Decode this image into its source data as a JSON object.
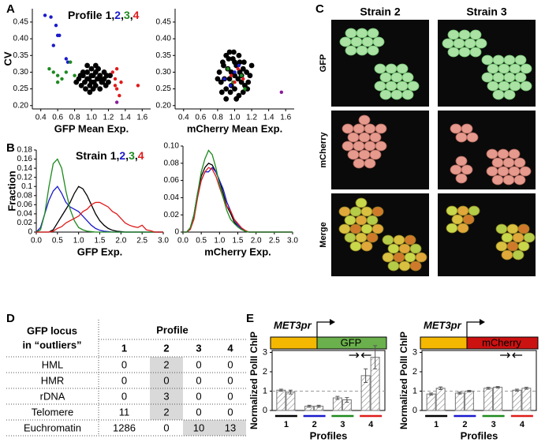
{
  "panel_labels": [
    "A",
    "B",
    "C",
    "D",
    "E"
  ],
  "chart_data": [
    {
      "type": "scatter",
      "title": "Profile",
      "separator": ",",
      "xlabel": "GFP Mean Exp.",
      "ylabel": "CV",
      "xlim": [
        0.3,
        1.7
      ],
      "xticks": [
        0.4,
        0.6,
        0.8,
        {
          "value": 1.0,
          "label": "1.0"
        },
        1.2,
        1.4,
        1.6
      ],
      "ylim": [
        0.19,
        0.49
      ],
      "yticks": [
        {
          "value": 0.2,
          "label": "0.20"
        },
        0.25,
        {
          "value": 0.3,
          "label": "0.30"
        },
        0.35,
        {
          "value": 0.4,
          "label": "0.40"
        },
        0.45
      ],
      "series": [
        {
          "name": "1",
          "color": "#000000",
          "x": [
            0.85,
            0.9,
            0.95,
            1.0,
            1.05,
            1.1,
            1.15,
            1.2,
            0.88,
            0.92,
            0.97,
            1.02,
            1.07,
            1.12,
            1.17,
            0.9,
            0.95,
            1.0,
            1.05,
            1.1,
            1.15,
            0.87,
            0.93,
            0.98,
            1.03,
            1.08,
            1.13,
            1.18,
            0.95,
            1.0,
            1.05,
            1.1,
            0.98,
            1.02,
            0.82,
            1.22
          ],
          "y": [
            0.28,
            0.29,
            0.3,
            0.31,
            0.3,
            0.29,
            0.28,
            0.27,
            0.26,
            0.27,
            0.28,
            0.29,
            0.28,
            0.27,
            0.26,
            0.3,
            0.32,
            0.27,
            0.26,
            0.25,
            0.3,
            0.29,
            0.25,
            0.24,
            0.27,
            0.31,
            0.27,
            0.29,
            0.28,
            0.29,
            0.32,
            0.28,
            0.26,
            0.25,
            0.27,
            0.29
          ]
        },
        {
          "name": "2",
          "color": "#1a1acc",
          "x": [
            0.45,
            0.52,
            0.58,
            0.6,
            0.62,
            0.55,
            0.7,
            0.72
          ],
          "y": [
            0.47,
            0.465,
            0.44,
            0.41,
            0.41,
            0.38,
            0.34,
            0.33
          ]
        },
        {
          "name": "3",
          "color": "#1e8a1e",
          "x": [
            0.5,
            0.55,
            0.6,
            0.65,
            0.7,
            0.75,
            0.6,
            0.8
          ],
          "y": [
            0.31,
            0.3,
            0.29,
            0.28,
            0.3,
            0.33,
            0.27,
            0.29
          ]
        },
        {
          "name": "4",
          "color": "#e01b1b",
          "x": [
            1.25,
            1.28,
            1.3,
            1.33,
            1.35,
            1.3,
            1.55,
            1.28
          ],
          "y": [
            0.3,
            0.28,
            0.25,
            0.23,
            0.27,
            0.31,
            0.26,
            0.26
          ]
        },
        {
          "color": "#8b1a9b",
          "x": [
            1.3
          ],
          "y": [
            0.21
          ]
        }
      ]
    },
    {
      "type": "scatter",
      "xlabel": "mCherry Mean Exp.",
      "xlim": [
        0.3,
        1.7
      ],
      "xticks": [
        0.4,
        0.6,
        0.8,
        {
          "value": 1.0,
          "label": "1.0"
        },
        1.2,
        1.4,
        1.6
      ],
      "ylim": [
        0.19,
        0.49
      ],
      "yticks": [
        {
          "value": 0.2,
          "label": "0.20"
        },
        0.25,
        {
          "value": 0.3,
          "label": "0.30"
        },
        0.35,
        {
          "value": 0.4,
          "label": "0.40"
        },
        0.45
      ],
      "series": [
        {
          "color": "#000000",
          "x": [
            0.82,
            0.86,
            0.9,
            0.94,
            0.98,
            1.02,
            1.06,
            1.1,
            1.14,
            1.18,
            0.84,
            0.88,
            0.92,
            0.96,
            1.0,
            1.04,
            1.08,
            1.12,
            1.16,
            0.85,
            0.9,
            0.95,
            1.0,
            1.05,
            1.1,
            1.15,
            0.87,
            0.93,
            0.99,
            1.05,
            1.11,
            0.9,
            0.96,
            1.02,
            1.08,
            0.94,
            1.0,
            1.06,
            0.8,
            1.2
          ],
          "y": [
            0.3,
            0.33,
            0.35,
            0.36,
            0.34,
            0.32,
            0.33,
            0.31,
            0.3,
            0.29,
            0.27,
            0.28,
            0.31,
            0.3,
            0.29,
            0.28,
            0.27,
            0.26,
            0.27,
            0.24,
            0.25,
            0.24,
            0.25,
            0.23,
            0.24,
            0.25,
            0.32,
            0.34,
            0.36,
            0.35,
            0.33,
            0.22,
            0.26,
            0.22,
            0.29,
            0.28,
            0.33,
            0.3,
            0.28,
            0.32
          ]
        },
        {
          "color": "#1a1acc",
          "x": [
            0.88,
            0.95,
            1.0,
            1.05
          ],
          "y": [
            0.28,
            0.26,
            0.3,
            0.32
          ]
        },
        {
          "color": "#1e8a1e",
          "x": [
            0.92,
            0.98,
            1.08,
            1.12
          ],
          "y": [
            0.31,
            0.27,
            0.29,
            0.25
          ]
        },
        {
          "color": "#e01b1b",
          "x": [
            0.96,
            1.0,
            1.04,
            1.1
          ],
          "y": [
            0.29,
            0.27,
            0.31,
            0.28
          ]
        },
        {
          "color": "#8b1a9b",
          "x": [
            1.55
          ],
          "y": [
            0.24
          ]
        }
      ]
    },
    {
      "type": "line",
      "title": "Strain",
      "separator": ",",
      "xlabel": "GFP Exp.",
      "ylabel": "Fraction",
      "xlim": [
        0,
        3
      ],
      "xticks": [
        {
          "value": 0,
          "label": "0.0"
        },
        0.5,
        {
          "value": 1,
          "label": "1.0"
        },
        1.5,
        {
          "value": 2,
          "label": "2.0"
        },
        2.5,
        {
          "value": 3,
          "label": "3.0"
        }
      ],
      "ylim": [
        0,
        0.18
      ],
      "yticks": [
        0,
        0.02,
        0.04,
        0.06,
        0.08,
        0.1,
        0.12,
        0.14,
        0.16,
        0.18
      ],
      "x": [
        0,
        0.1,
        0.2,
        0.3,
        0.4,
        0.5,
        0.6,
        0.7,
        0.8,
        0.9,
        1,
        1.1,
        1.2,
        1.3,
        1.4,
        1.5,
        1.6,
        1.7,
        1.8,
        1.9,
        2,
        2.1,
        2.2,
        2.3,
        2.4,
        2.5,
        2.6,
        2.7,
        2.8,
        2.9,
        3
      ],
      "series": [
        {
          "name": "1",
          "color": "#000000",
          "values": [
            0,
            0,
            0,
            0,
            0.005,
            0.02,
            0.035,
            0.05,
            0.065,
            0.085,
            0.1,
            0.095,
            0.08,
            0.06,
            0.04,
            0.025,
            0.015,
            0.008,
            0.004,
            0.002,
            0.001,
            0,
            0,
            0,
            0,
            0,
            0,
            0,
            0,
            0,
            0
          ]
        },
        {
          "name": "2",
          "color": "#1a1acc",
          "values": [
            0,
            0.01,
            0.04,
            0.07,
            0.09,
            0.1,
            0.085,
            0.065,
            0.055,
            0.05,
            0.045,
            0.035,
            0.025,
            0.015,
            0.008,
            0.004,
            0.002,
            0.001,
            0,
            0,
            0,
            0,
            0,
            0,
            0,
            0,
            0,
            0,
            0,
            0,
            0
          ]
        },
        {
          "name": "3",
          "color": "#1e8a1e",
          "values": [
            0,
            0.005,
            0.04,
            0.1,
            0.15,
            0.16,
            0.14,
            0.09,
            0.05,
            0.025,
            0.01,
            0.005,
            0.002,
            0.001,
            0,
            0,
            0,
            0,
            0,
            0,
            0,
            0,
            0,
            0,
            0,
            0,
            0,
            0,
            0,
            0,
            0
          ]
        },
        {
          "name": "4",
          "color": "#e01b1b",
          "values": [
            0,
            0,
            0,
            0,
            0.002,
            0.008,
            0.012,
            0.02,
            0.025,
            0.03,
            0.035,
            0.045,
            0.05,
            0.06,
            0.065,
            0.065,
            0.06,
            0.055,
            0.045,
            0.04,
            0.03,
            0.02,
            0.015,
            0.012,
            0.01,
            0.015,
            0.005,
            0.003,
            0,
            0,
            0
          ]
        }
      ]
    },
    {
      "type": "line",
      "xlabel": "mCherry Exp.",
      "xlim": [
        0,
        3
      ],
      "xticks": [
        {
          "value": 0,
          "label": "0.0"
        },
        0.5,
        {
          "value": 1,
          "label": "1.0"
        },
        1.5,
        {
          "value": 2,
          "label": "2.0"
        },
        2.5,
        {
          "value": 3,
          "label": "3.0"
        }
      ],
      "ylim": [
        0,
        0.1
      ],
      "yticks": [
        0,
        0.02,
        0.04,
        0.06,
        0.08,
        {
          "value": 0.1,
          "label": "0.10"
        }
      ],
      "x": [
        0,
        0.1,
        0.2,
        0.3,
        0.4,
        0.5,
        0.6,
        0.7,
        0.8,
        0.9,
        1,
        1.1,
        1.2,
        1.3,
        1.4,
        1.5,
        1.6,
        1.7,
        1.8,
        1.9,
        2,
        2.1,
        2.2,
        2.3,
        2.4,
        2.5,
        2.6,
        2.7,
        2.8,
        2.9,
        3
      ],
      "series": [
        {
          "color": "#000000",
          "values": [
            0,
            0,
            0.005,
            0.02,
            0.045,
            0.065,
            0.075,
            0.08,
            0.078,
            0.07,
            0.06,
            0.045,
            0.03,
            0.022,
            0.012,
            0.006,
            0.003,
            0.001,
            0,
            0,
            0,
            0,
            0,
            0,
            0,
            0,
            0,
            0,
            0,
            0,
            0
          ]
        },
        {
          "color": "#1a1acc",
          "values": [
            0,
            0,
            0.004,
            0.02,
            0.045,
            0.06,
            0.07,
            0.07,
            0.075,
            0.07,
            0.06,
            0.05,
            0.035,
            0.025,
            0.015,
            0.008,
            0.004,
            0.001,
            0,
            0,
            0,
            0,
            0,
            0,
            0,
            0,
            0,
            0,
            0,
            0,
            0
          ]
        },
        {
          "color": "#e01b1b",
          "values": [
            0,
            0,
            0.003,
            0.015,
            0.04,
            0.06,
            0.07,
            0.075,
            0.073,
            0.065,
            0.052,
            0.04,
            0.03,
            0.025,
            0.015,
            0.01,
            0.005,
            0.002,
            0,
            0,
            0,
            0,
            0,
            0,
            0,
            0,
            0,
            0,
            0,
            0,
            0
          ]
        },
        {
          "color": "#1e8a1e",
          "values": [
            0,
            0,
            0.005,
            0.02,
            0.045,
            0.07,
            0.085,
            0.095,
            0.09,
            0.075,
            0.055,
            0.04,
            0.025,
            0.015,
            0.01,
            0.006,
            0.003,
            0.001,
            0,
            0,
            0,
            0,
            0,
            0,
            0,
            0,
            0,
            0,
            0,
            0,
            0
          ]
        }
      ]
    },
    {
      "type": "bar",
      "promoter": "MET3pr",
      "gene": "GFP",
      "promoter_color": "#f5b800",
      "gene_color": "#6ab04c",
      "xlabel": "Profiles",
      "ylabel": "Normalized PolII ChIP",
      "categories": [
        "1",
        "2",
        "3",
        "4"
      ],
      "category_colors": [
        "#000000",
        "#1a1acc",
        "#1e8a1e",
        "#e01b1b"
      ],
      "ylim": [
        0,
        3.1
      ],
      "yticks": [
        0,
        1,
        2,
        3
      ],
      "reference_line": 1,
      "series": [
        {
          "values": [
            1.05,
            0.22,
            0.65,
            1.8
          ],
          "errors": [
            0.05,
            0.05,
            0.08,
            0.35
          ]
        },
        {
          "values": [
            0.95,
            0.22,
            0.55,
            2.75
          ],
          "errors": [
            0.1,
            0.05,
            0.12,
            0.6
          ]
        }
      ]
    },
    {
      "type": "bar",
      "promoter": "MET3pr",
      "gene": "mCherry",
      "promoter_color": "#f5b800",
      "gene_color": "#cc1111",
      "xlabel": "Profiles",
      "ylabel": "Normalized PolII ChIP",
      "categories": [
        "1",
        "2",
        "3",
        "4"
      ],
      "category_colors": [
        "#000000",
        "#1a1acc",
        "#1e8a1e",
        "#e01b1b"
      ],
      "ylim": [
        0,
        3.1
      ],
      "yticks": [
        0,
        1,
        2,
        3
      ],
      "reference_line": 1,
      "series": [
        {
          "values": [
            0.85,
            0.9,
            1.15,
            1.05
          ],
          "errors": [
            0.05,
            0.05,
            0.05,
            0.05
          ]
        },
        {
          "values": [
            1.15,
            1.0,
            1.2,
            1.15
          ],
          "errors": [
            0.07,
            0.04,
            0.04,
            0.05
          ]
        }
      ]
    }
  ],
  "micrographs": {
    "columns": [
      {
        "label": "Strain 2",
        "color": "#1a1acc"
      },
      {
        "label": "Strain 3",
        "color": "#1e8a1e"
      }
    ],
    "rows": [
      "GFP",
      "mCherry",
      "Merge"
    ]
  },
  "table": {
    "header": {
      "locus": [
        "GFP locus",
        "in “outliers”"
      ],
      "profile": "Profile",
      "columns": [
        "1",
        "2",
        "3",
        "4"
      ],
      "column_colors": [
        "#000000",
        "#1a1acc",
        "#1e8a1e",
        "#e01b1b"
      ]
    },
    "rows": [
      [
        "HML",
        0,
        2,
        0,
        0
      ],
      [
        "HMR",
        0,
        0,
        0,
        0
      ],
      [
        "rDNA",
        0,
        3,
        0,
        0
      ],
      [
        "Telomere",
        11,
        2,
        0,
        0
      ],
      [
        "Euchromatin",
        1286,
        0,
        10,
        13
      ]
    ],
    "highlight_color": "#d9d9d9",
    "highlighted": [
      [
        0,
        2
      ],
      [
        1,
        2
      ],
      [
        2,
        2
      ],
      [
        3,
        2
      ],
      [
        4,
        3
      ],
      [
        4,
        4
      ]
    ]
  }
}
